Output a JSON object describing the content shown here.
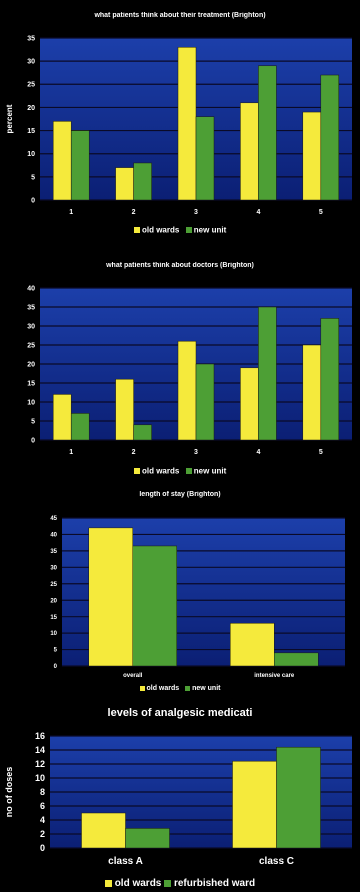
{
  "colors": {
    "old": "#f5ea3c",
    "new": "#4d9f35",
    "plot_top": "#1c3faa",
    "plot_bottom": "#0b1f74",
    "grid": "#0a0a28"
  },
  "chart_data": [
    {
      "type": "bar",
      "title": "what patients think about their treatment (Brighton)",
      "ylabel": "percent",
      "xlabel": "",
      "categories": [
        "1",
        "2",
        "3",
        "4",
        "5"
      ],
      "series": [
        {
          "name": "old wards",
          "values": [
            17,
            7,
            33,
            21,
            19
          ]
        },
        {
          "name": "new unit",
          "values": [
            15,
            8,
            18,
            29,
            27
          ]
        }
      ],
      "ylim": [
        0,
        35
      ],
      "yticks": [
        "0",
        "5",
        "10",
        "15",
        "20",
        "25",
        "30",
        "35"
      ],
      "legend": "bottom",
      "grid": true
    },
    {
      "type": "bar",
      "title": "what patients think about doctors (Brighton)",
      "ylabel": "",
      "xlabel": "",
      "categories": [
        "1",
        "2",
        "3",
        "4",
        "5"
      ],
      "series": [
        {
          "name": "old wards",
          "values": [
            12,
            16,
            26,
            19,
            25
          ]
        },
        {
          "name": "new unit",
          "values": [
            7,
            4,
            20,
            35,
            32
          ]
        }
      ],
      "ylim": [
        0,
        40
      ],
      "yticks": [
        "0",
        "5",
        "10",
        "15",
        "20",
        "25",
        "30",
        "35",
        "40"
      ],
      "legend": "bottom",
      "grid": true
    },
    {
      "type": "bar",
      "title": "length of stay (Brighton)",
      "ylabel": "",
      "xlabel": "",
      "categories": [
        "overall",
        "intensive care"
      ],
      "series": [
        {
          "name": "old wards",
          "values": [
            42,
            13
          ]
        },
        {
          "name": "new unit",
          "values": [
            36.5,
            4
          ]
        }
      ],
      "ylim": [
        0,
        45
      ],
      "yticks": [
        "0",
        "5",
        "10",
        "15",
        "20",
        "25",
        "30",
        "35",
        "40",
        "45"
      ],
      "legend": "bottom",
      "grid": true
    },
    {
      "type": "bar",
      "title": "levels of analgesic medicati",
      "ylabel": "no of doses",
      "xlabel": "",
      "categories": [
        "class A",
        "class C"
      ],
      "series": [
        {
          "name": "old wards",
          "values": [
            5,
            12.4
          ]
        },
        {
          "name": "refurbished ward",
          "values": [
            2.8,
            14.4
          ]
        }
      ],
      "ylim": [
        0,
        16
      ],
      "yticks": [
        "0",
        "2",
        "4",
        "6",
        "8",
        "10",
        "12",
        "14",
        "16"
      ],
      "legend": "bottom",
      "grid": true
    }
  ]
}
